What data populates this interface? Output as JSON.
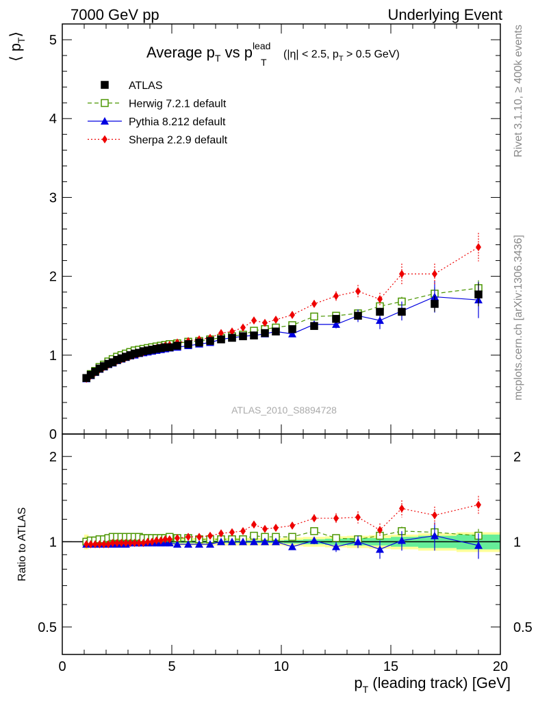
{
  "header": {
    "left": "7000 GeV pp",
    "right": "Underlying Event"
  },
  "side_labels": {
    "rivet": "Rivet 3.1.10, ≥ 400k events",
    "mcplots": "mcplots.cern.ch [arXiv:1306.3436]"
  },
  "watermark": "ATLAS_2010_S8894728",
  "chart_data": [
    {
      "type": "scatter",
      "panel": "main",
      "title_parts": {
        "text1": "Average p",
        "sub1": "T",
        "text2": " vs p",
        "sup2": "lead",
        "sub2": "T",
        "cut1": " (|η| < 2.5, p",
        "cut_sub": "T",
        "cut2": " > 0.5 GeV)"
      },
      "ylabel_parts": {
        "open": "⟨ p",
        "sub": "T",
        "close": "⟩"
      },
      "xlabel_parts": {
        "p": "p",
        "sub": "T",
        "rest": " (leading track) [GeV]"
      },
      "xlim": [
        0,
        20
      ],
      "ylim": [
        0,
        5.2
      ],
      "yticks": [
        0,
        1,
        2,
        3,
        4,
        5
      ],
      "xticks": [
        0,
        5,
        10,
        15,
        20
      ],
      "legend_position": "top-left",
      "x": [
        1.1,
        1.3,
        1.5,
        1.7,
        1.9,
        2.1,
        2.3,
        2.5,
        2.7,
        2.9,
        3.1,
        3.3,
        3.5,
        3.7,
        3.9,
        4.1,
        4.3,
        4.5,
        4.7,
        4.9,
        5.25,
        5.75,
        6.25,
        6.75,
        7.25,
        7.75,
        8.25,
        8.75,
        9.25,
        9.75,
        10.5,
        11.5,
        12.5,
        13.5,
        14.5,
        15.5,
        17.0,
        19.0
      ],
      "series": [
        {
          "name": "ATLAS",
          "color": "#000000",
          "marker": "filled-square",
          "values": [
            0.71,
            0.75,
            0.79,
            0.83,
            0.86,
            0.89,
            0.91,
            0.94,
            0.96,
            0.98,
            1.0,
            1.02,
            1.03,
            1.05,
            1.06,
            1.07,
            1.08,
            1.09,
            1.1,
            1.1,
            1.12,
            1.14,
            1.16,
            1.18,
            1.2,
            1.22,
            1.24,
            1.25,
            1.28,
            1.3,
            1.33,
            1.37,
            1.46,
            1.5,
            1.55,
            1.55,
            1.65,
            1.77
          ],
          "errors": [
            0.005,
            0.005,
            0.005,
            0.005,
            0.005,
            0.005,
            0.005,
            0.005,
            0.005,
            0.005,
            0.005,
            0.005,
            0.005,
            0.005,
            0.005,
            0.005,
            0.005,
            0.005,
            0.005,
            0.005,
            0.005,
            0.005,
            0.01,
            0.01,
            0.01,
            0.01,
            0.01,
            0.01,
            0.01,
            0.01,
            0.01,
            0.02,
            0.03,
            0.05,
            0.05,
            0.05,
            0.1,
            0.15
          ]
        },
        {
          "name": "Herwig 7.2.1 default",
          "color": "#4a9500",
          "marker": "open-square",
          "line": "dashed",
          "values": [
            0.71,
            0.76,
            0.8,
            0.85,
            0.88,
            0.92,
            0.95,
            0.98,
            1.0,
            1.02,
            1.04,
            1.06,
            1.07,
            1.08,
            1.09,
            1.1,
            1.11,
            1.12,
            1.13,
            1.14,
            1.15,
            1.17,
            1.18,
            1.2,
            1.22,
            1.24,
            1.26,
            1.31,
            1.33,
            1.35,
            1.38,
            1.49,
            1.5,
            1.53,
            1.62,
            1.68,
            1.78,
            1.85
          ],
          "errors": [
            0.005,
            0.005,
            0.005,
            0.005,
            0.005,
            0.005,
            0.005,
            0.005,
            0.005,
            0.005,
            0.005,
            0.005,
            0.005,
            0.005,
            0.005,
            0.005,
            0.005,
            0.005,
            0.005,
            0.005,
            0.005,
            0.005,
            0.01,
            0.01,
            0.01,
            0.01,
            0.01,
            0.02,
            0.02,
            0.02,
            0.02,
            0.03,
            0.03,
            0.04,
            0.05,
            0.06,
            0.08,
            0.1
          ]
        },
        {
          "name": "Pythia 8.212 default",
          "color": "#0000e0",
          "marker": "filled-triangle",
          "line": "solid",
          "values": [
            0.7,
            0.74,
            0.78,
            0.82,
            0.85,
            0.88,
            0.9,
            0.93,
            0.95,
            0.97,
            0.99,
            1.0,
            1.02,
            1.03,
            1.04,
            1.05,
            1.06,
            1.07,
            1.08,
            1.09,
            1.1,
            1.12,
            1.14,
            1.16,
            1.2,
            1.22,
            1.24,
            1.25,
            1.27,
            1.3,
            1.27,
            1.39,
            1.39,
            1.5,
            1.44,
            1.56,
            1.74,
            1.7
          ],
          "errors": [
            0.005,
            0.005,
            0.005,
            0.005,
            0.005,
            0.005,
            0.005,
            0.005,
            0.005,
            0.005,
            0.005,
            0.005,
            0.005,
            0.005,
            0.005,
            0.005,
            0.005,
            0.005,
            0.005,
            0.005,
            0.005,
            0.01,
            0.01,
            0.01,
            0.01,
            0.01,
            0.01,
            0.01,
            0.02,
            0.02,
            0.03,
            0.04,
            0.05,
            0.08,
            0.11,
            0.12,
            0.2,
            0.23
          ]
        },
        {
          "name": "Sherpa 2.2.9 default",
          "color": "#ee0000",
          "marker": "filled-diamond",
          "line": "dotted",
          "values": [
            0.7,
            0.74,
            0.78,
            0.82,
            0.85,
            0.88,
            0.91,
            0.93,
            0.95,
            0.97,
            0.99,
            1.01,
            1.02,
            1.04,
            1.06,
            1.07,
            1.09,
            1.1,
            1.12,
            1.13,
            1.16,
            1.18,
            1.2,
            1.22,
            1.28,
            1.3,
            1.35,
            1.44,
            1.41,
            1.45,
            1.51,
            1.65,
            1.75,
            1.81,
            1.71,
            2.03,
            2.03,
            2.37
          ],
          "errors": [
            0.005,
            0.005,
            0.005,
            0.005,
            0.005,
            0.005,
            0.005,
            0.005,
            0.005,
            0.005,
            0.005,
            0.005,
            0.005,
            0.005,
            0.005,
            0.005,
            0.005,
            0.005,
            0.005,
            0.005,
            0.01,
            0.01,
            0.01,
            0.01,
            0.02,
            0.02,
            0.02,
            0.03,
            0.03,
            0.04,
            0.04,
            0.05,
            0.06,
            0.08,
            0.08,
            0.13,
            0.13,
            0.18
          ]
        }
      ]
    },
    {
      "type": "scatter",
      "panel": "ratio",
      "ylabel": "Ratio to ATLAS",
      "yscale": "log",
      "ylim": [
        0.4,
        2.4
      ],
      "yticks": [
        0.5,
        1,
        2
      ],
      "reference_line": 1,
      "band": {
        "stat_color": "#66ee99",
        "total_color": "#ffff99",
        "inner_halfwidth": [
          0.02,
          0.02,
          0.015,
          0.01,
          0.01,
          0.01,
          0.01,
          0.01,
          0.01,
          0.01,
          0.01,
          0.01,
          0.01,
          0.01,
          0.01,
          0.01,
          0.01,
          0.01,
          0.01,
          0.01,
          0.01,
          0.01,
          0.01,
          0.01,
          0.01,
          0.01,
          0.01,
          0.01,
          0.01,
          0.01,
          0.015,
          0.02,
          0.025,
          0.03,
          0.03,
          0.04,
          0.05,
          0.06
        ],
        "outer_halfwidth": [
          0.06,
          0.04,
          0.03,
          0.03,
          0.03,
          0.03,
          0.03,
          0.03,
          0.03,
          0.03,
          0.03,
          0.03,
          0.03,
          0.03,
          0.03,
          0.03,
          0.03,
          0.03,
          0.03,
          0.03,
          0.03,
          0.03,
          0.03,
          0.03,
          0.03,
          0.03,
          0.03,
          0.03,
          0.03,
          0.03,
          0.035,
          0.04,
          0.045,
          0.05,
          0.055,
          0.06,
          0.07,
          0.08
        ]
      },
      "series": [
        {
          "name": "Herwig 7.2.1 default",
          "values": [
            1.0,
            1.01,
            1.01,
            1.02,
            1.02,
            1.03,
            1.04,
            1.04,
            1.04,
            1.04,
            1.04,
            1.04,
            1.04,
            1.03,
            1.03,
            1.03,
            1.03,
            1.03,
            1.03,
            1.04,
            1.03,
            1.03,
            1.02,
            1.02,
            1.02,
            1.02,
            1.02,
            1.05,
            1.04,
            1.04,
            1.04,
            1.09,
            1.03,
            1.02,
            1.05,
            1.09,
            1.08,
            1.05
          ],
          "errors": [
            0.01,
            0.01,
            0.01,
            0.01,
            0.01,
            0.01,
            0.01,
            0.01,
            0.01,
            0.01,
            0.01,
            0.01,
            0.01,
            0.01,
            0.01,
            0.01,
            0.01,
            0.01,
            0.01,
            0.01,
            0.01,
            0.01,
            0.01,
            0.01,
            0.01,
            0.01,
            0.01,
            0.01,
            0.01,
            0.01,
            0.01,
            0.02,
            0.02,
            0.03,
            0.03,
            0.04,
            0.05,
            0.06
          ]
        },
        {
          "name": "Pythia 8.212 default",
          "values": [
            0.98,
            0.98,
            0.98,
            0.98,
            0.98,
            0.98,
            0.98,
            0.98,
            0.98,
            0.98,
            0.99,
            0.99,
            0.99,
            0.99,
            0.99,
            0.99,
            0.99,
            0.99,
            0.99,
            0.99,
            0.98,
            0.98,
            0.98,
            0.98,
            1.0,
            1.0,
            1.0,
            1.0,
            1.0,
            1.0,
            0.96,
            1.01,
            0.96,
            1.0,
            0.94,
            1.01,
            1.05,
            0.97
          ],
          "errors": [
            0.005,
            0.005,
            0.005,
            0.005,
            0.005,
            0.005,
            0.005,
            0.005,
            0.005,
            0.005,
            0.005,
            0.005,
            0.005,
            0.005,
            0.005,
            0.005,
            0.005,
            0.005,
            0.005,
            0.005,
            0.005,
            0.01,
            0.01,
            0.01,
            0.01,
            0.01,
            0.01,
            0.01,
            0.015,
            0.015,
            0.02,
            0.03,
            0.04,
            0.05,
            0.07,
            0.08,
            0.12,
            0.1
          ]
        },
        {
          "name": "Sherpa 2.2.9 default",
          "values": [
            0.98,
            0.98,
            0.98,
            0.98,
            0.98,
            0.98,
            0.99,
            0.99,
            0.99,
            0.99,
            0.99,
            0.99,
            0.99,
            0.99,
            1.0,
            1.0,
            1.01,
            1.01,
            1.02,
            1.02,
            1.03,
            1.04,
            1.04,
            1.05,
            1.07,
            1.08,
            1.09,
            1.15,
            1.11,
            1.12,
            1.14,
            1.21,
            1.21,
            1.22,
            1.1,
            1.31,
            1.24,
            1.35
          ],
          "errors": [
            0.005,
            0.005,
            0.005,
            0.005,
            0.005,
            0.005,
            0.005,
            0.005,
            0.005,
            0.005,
            0.005,
            0.005,
            0.005,
            0.005,
            0.005,
            0.005,
            0.005,
            0.005,
            0.005,
            0.005,
            0.01,
            0.01,
            0.01,
            0.01,
            0.015,
            0.015,
            0.015,
            0.02,
            0.02,
            0.025,
            0.03,
            0.04,
            0.05,
            0.06,
            0.06,
            0.09,
            0.09,
            0.1
          ]
        }
      ]
    }
  ]
}
